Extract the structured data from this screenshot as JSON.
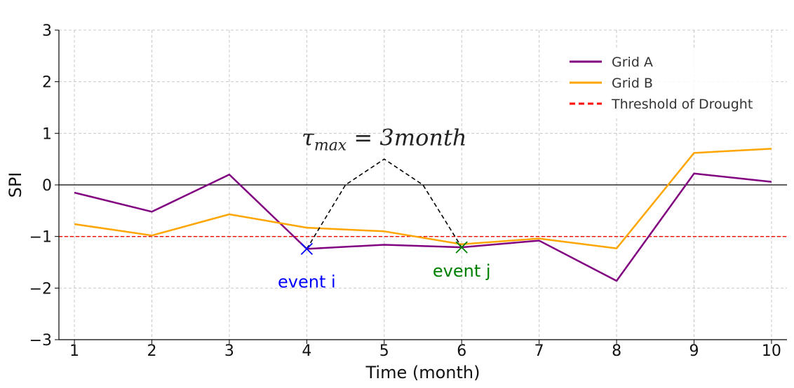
{
  "chart_data": {
    "type": "line",
    "title": "",
    "xlabel": "Time (month)",
    "ylabel": "SPI",
    "x": [
      1,
      2,
      3,
      4,
      5,
      6,
      7,
      8,
      9,
      10
    ],
    "xlim": [
      0.8,
      10.2
    ],
    "ylim": [
      -3,
      3
    ],
    "x_ticks": [
      1,
      2,
      3,
      4,
      5,
      6,
      7,
      8,
      9,
      10
    ],
    "y_ticks": [
      -3,
      -2,
      -1,
      0,
      1,
      2,
      3
    ],
    "y_tick_labels": [
      "−3",
      "−2",
      "−1",
      "0",
      "1",
      "2",
      "3"
    ],
    "grid": true,
    "legend_position": "top-right",
    "series": [
      {
        "name": "Grid A",
        "color": "#800080",
        "values": [
          -0.15,
          -0.52,
          0.2,
          -1.24,
          -1.16,
          -1.21,
          -1.08,
          -1.86,
          0.22,
          0.06
        ]
      },
      {
        "name": "Grid B",
        "color": "#FFA500",
        "values": [
          -0.76,
          -0.98,
          -0.57,
          -0.83,
          -0.9,
          -1.15,
          -1.04,
          -1.23,
          0.62,
          0.7
        ]
      }
    ],
    "threshold": {
      "name": "Threshold of Drought",
      "value": -1,
      "color": "#FF0000",
      "style": "dashed"
    },
    "zero_line": {
      "value": 0,
      "color": "#000000"
    },
    "envelope": {
      "color": "#000000",
      "style": "dashed",
      "points": [
        [
          4,
          -1.24
        ],
        [
          4.5,
          0
        ],
        [
          5,
          0.5
        ],
        [
          5.5,
          0
        ],
        [
          6,
          -1.21
        ]
      ]
    },
    "annotations": {
      "tau": {
        "base": "τ",
        "sub": "max",
        "rest": " = 3month",
        "x": 5,
        "y": 0.85
      },
      "events": [
        {
          "label": "event i",
          "x": 4,
          "y": -1.24,
          "color": "#0000FF"
        },
        {
          "label": "event j",
          "x": 6,
          "y": -1.21,
          "color": "#008000"
        }
      ]
    }
  }
}
